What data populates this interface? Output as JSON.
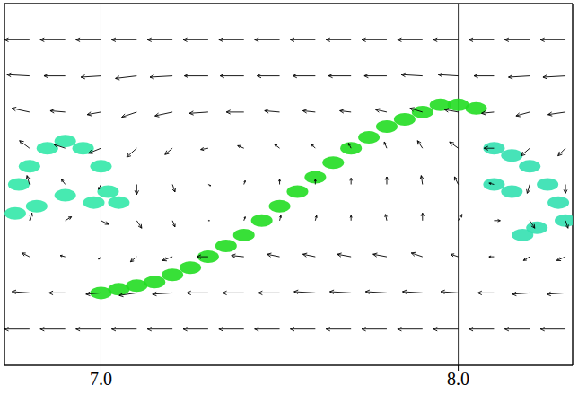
{
  "chart_data": {
    "type": "quiver",
    "xlim": [
      6.73,
      8.32
    ],
    "ylim": [
      -0.5,
      0.5
    ],
    "xticks": [
      {
        "value": 7,
        "label": "7.0"
      },
      {
        "value": 8,
        "label": "8.0"
      }
    ],
    "yticks": [
      0
    ],
    "grid": true,
    "tick_labels": "x",
    "color": "#000000",
    "vectors": {
      "x": [
        6.8,
        6.9,
        7.0,
        7.1,
        7.2,
        7.3,
        7.4,
        7.5,
        7.6,
        7.7,
        7.8,
        7.9,
        8.0,
        8.1,
        8.2,
        8.3
      ],
      "y": [
        0.4,
        0.3,
        0.2,
        0.1,
        0,
        -0.1,
        -0.2,
        -0.3,
        -0.4
      ],
      "u": [
        [
          -1,
          -1,
          -1,
          -1,
          -1,
          -1,
          -1,
          -1,
          -1,
          -1,
          -1,
          -1,
          -1,
          -1,
          -1,
          -1
        ],
        [
          -0.9,
          -0.85,
          -0.8,
          -0.85,
          -0.9,
          -0.95,
          -0.95,
          -0.9,
          -0.9,
          -0.9,
          -0.9,
          -0.85,
          -0.8,
          -0.8,
          -0.85,
          -0.9
        ],
        [
          -0.7,
          -0.6,
          -0.55,
          -0.6,
          -0.7,
          -0.75,
          -0.7,
          -0.6,
          -0.5,
          -0.45,
          -0.45,
          -0.5,
          -0.55,
          -0.5,
          -0.55,
          -0.7
        ],
        [
          -0.4,
          -0.45,
          -0.5,
          -0.4,
          -0.3,
          -0.3,
          -0.25,
          -0.2,
          -0.15,
          -0.1,
          -0.1,
          -0.2,
          -0.35,
          -0.4,
          -0.35,
          -0.3
        ],
        [
          -0.1,
          -0.15,
          -0.1,
          0,
          0.1,
          0.1,
          0.05,
          0,
          0,
          0,
          0,
          -0.05,
          -0.15,
          -0.2,
          -0.1,
          0
        ],
        [
          0.1,
          0.25,
          0.3,
          0.2,
          0.1,
          0.05,
          0.05,
          0.05,
          0.05,
          0,
          -0.05,
          0,
          0.15,
          0.25,
          0.2,
          0.1
        ],
        [
          -0.3,
          -0.2,
          -0.1,
          -0.25,
          -0.4,
          -0.45,
          -0.5,
          -0.5,
          -0.5,
          -0.55,
          -0.55,
          -0.45,
          -0.3,
          -0.2,
          -0.25,
          -0.35
        ],
        [
          -0.7,
          -0.65,
          -0.6,
          -0.7,
          -0.8,
          -0.85,
          -0.85,
          -0.85,
          -0.85,
          -0.85,
          -0.85,
          -0.8,
          -0.7,
          -0.65,
          -0.7,
          -0.75
        ],
        [
          -1,
          -1,
          -1,
          -1,
          -1,
          -1,
          -1,
          -1,
          -1,
          -1,
          -1,
          -1,
          -1,
          -1,
          -1,
          -1
        ]
      ],
      "v": [
        [
          0,
          0,
          0,
          0,
          0,
          0,
          0,
          0,
          0,
          0,
          0,
          0,
          0,
          0,
          0,
          0
        ],
        [
          0.05,
          0,
          -0.05,
          -0.1,
          -0.05,
          0,
          0,
          0,
          0,
          0,
          0,
          0.05,
          0.05,
          0,
          -0.05,
          -0.05
        ],
        [
          0.15,
          0.05,
          -0.1,
          -0.2,
          -0.15,
          -0.05,
          0,
          0.05,
          0.05,
          0.05,
          0.1,
          0.15,
          0.1,
          -0.05,
          -0.15,
          -0.1
        ],
        [
          0.3,
          0.15,
          -0.2,
          -0.35,
          -0.25,
          -0.05,
          0.1,
          0.15,
          0.15,
          0.2,
          0.25,
          0.3,
          0.25,
          0,
          -0.3,
          -0.3
        ],
        [
          0.35,
          0.2,
          -0.2,
          -0.4,
          -0.3,
          -0.05,
          0.15,
          0.2,
          0.2,
          0.25,
          0.3,
          0.35,
          0.3,
          0.05,
          -0.35,
          -0.35
        ],
        [
          0.3,
          0.15,
          -0.15,
          -0.3,
          -0.25,
          0,
          0.15,
          0.2,
          0.2,
          0.2,
          0.25,
          0.3,
          0.25,
          0,
          -0.3,
          -0.3
        ],
        [
          0.15,
          0.05,
          -0.1,
          -0.2,
          -0.15,
          0,
          0.05,
          0.1,
          0.1,
          0.1,
          0.1,
          0.15,
          0.1,
          0,
          -0.15,
          -0.15
        ],
        [
          0.05,
          0,
          -0.05,
          -0.1,
          -0.05,
          0,
          0,
          0,
          0.05,
          0.05,
          0.05,
          0.05,
          0.05,
          0,
          -0.05,
          -0.05
        ],
        [
          0,
          0,
          0,
          0,
          0,
          0,
          0,
          0,
          0,
          0,
          0,
          0,
          0,
          0,
          0,
          0
        ]
      ]
    },
    "structures": [
      {
        "color": "#22dd22",
        "points": [
          [
            7.0,
            -0.3
          ],
          [
            7.05,
            -0.29
          ],
          [
            7.1,
            -0.28
          ],
          [
            7.15,
            -0.27
          ],
          [
            7.2,
            -0.25
          ],
          [
            7.25,
            -0.23
          ],
          [
            7.3,
            -0.2
          ],
          [
            7.35,
            -0.17
          ],
          [
            7.4,
            -0.14
          ],
          [
            7.45,
            -0.1
          ],
          [
            7.5,
            -0.06
          ],
          [
            7.55,
            -0.02
          ],
          [
            7.6,
            0.02
          ],
          [
            7.65,
            0.06
          ],
          [
            7.7,
            0.1
          ],
          [
            7.75,
            0.13
          ],
          [
            7.8,
            0.16
          ],
          [
            7.85,
            0.18
          ],
          [
            7.9,
            0.2
          ],
          [
            7.95,
            0.22
          ],
          [
            8.0,
            0.22
          ],
          [
            8.05,
            0.21
          ]
        ]
      },
      {
        "color": "#33e8a8",
        "points": [
          [
            6.77,
            0.0
          ],
          [
            6.8,
            0.05
          ],
          [
            6.85,
            0.1
          ],
          [
            6.9,
            0.12
          ],
          [
            6.95,
            0.1
          ],
          [
            7.0,
            0.05
          ],
          [
            7.02,
            -0.02
          ],
          [
            6.98,
            -0.05
          ],
          [
            6.9,
            -0.03
          ],
          [
            6.82,
            -0.06
          ],
          [
            6.76,
            -0.08
          ],
          [
            7.05,
            -0.05
          ]
        ]
      },
      {
        "color": "#33e0b0",
        "points": [
          [
            8.1,
            0.1
          ],
          [
            8.15,
            0.08
          ],
          [
            8.2,
            0.05
          ],
          [
            8.25,
            0.0
          ],
          [
            8.28,
            -0.05
          ],
          [
            8.3,
            -0.1
          ],
          [
            8.22,
            -0.12
          ],
          [
            8.15,
            -0.02
          ],
          [
            8.1,
            0.0
          ],
          [
            8.18,
            -0.14
          ]
        ]
      }
    ]
  }
}
